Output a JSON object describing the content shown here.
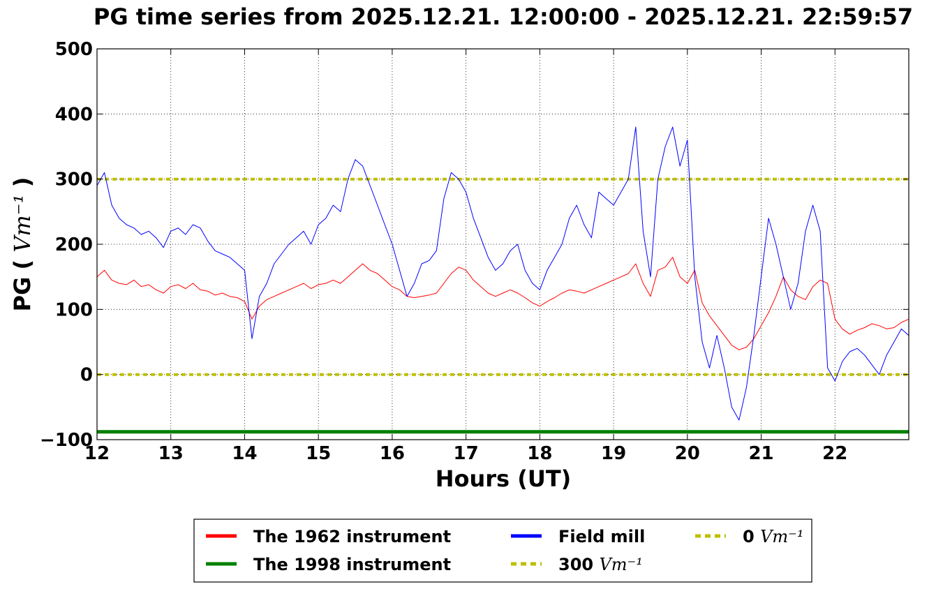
{
  "chart_data": {
    "type": "line",
    "title": "PG time series from 2025.12.21. 12:00:00 - 2025.12.21. 22:59:57",
    "xlabel": "Hours (UT)",
    "ylabel": "PG",
    "ylabel_unit": "Vm⁻¹",
    "xlim": [
      12,
      23
    ],
    "ylim": [
      -100,
      500
    ],
    "xticks": [
      "12",
      "13",
      "14",
      "15",
      "16",
      "17",
      "18",
      "19",
      "20",
      "21",
      "22"
    ],
    "yticks": [
      "−100",
      "0",
      "100",
      "200",
      "300",
      "400",
      "500"
    ],
    "grid": true,
    "legend_position": "below",
    "series": [
      {
        "name": "The 1962 instrument",
        "color": "#ff0000",
        "style": "solid",
        "x": [
          12.0,
          12.1,
          12.2,
          12.3,
          12.4,
          12.5,
          12.6,
          12.7,
          12.8,
          12.9,
          13.0,
          13.1,
          13.2,
          13.3,
          13.4,
          13.5,
          13.6,
          13.7,
          13.8,
          13.9,
          14.0,
          14.1,
          14.2,
          14.3,
          14.4,
          14.5,
          14.6,
          14.7,
          14.8,
          14.9,
          15.0,
          15.1,
          15.2,
          15.3,
          15.4,
          15.5,
          15.6,
          15.7,
          15.8,
          15.9,
          16.0,
          16.1,
          16.2,
          16.3,
          16.4,
          16.5,
          16.6,
          16.7,
          16.8,
          16.9,
          17.0,
          17.1,
          17.2,
          17.3,
          17.4,
          17.5,
          17.6,
          17.7,
          17.8,
          17.9,
          18.0,
          18.1,
          18.2,
          18.3,
          18.4,
          18.5,
          18.6,
          18.7,
          18.8,
          18.9,
          19.0,
          19.1,
          19.2,
          19.3,
          19.4,
          19.5,
          19.6,
          19.7,
          19.8,
          19.9,
          20.0,
          20.1,
          20.2,
          20.3,
          20.4,
          20.5,
          20.6,
          20.7,
          20.8,
          20.9,
          21.0,
          21.1,
          21.2,
          21.3,
          21.4,
          21.5,
          21.6,
          21.7,
          21.8,
          21.9,
          22.0,
          22.1,
          22.2,
          22.3,
          22.4,
          22.5,
          22.6,
          22.7,
          22.8,
          22.9,
          23.0
        ],
        "y": [
          150,
          160,
          145,
          140,
          138,
          145,
          135,
          138,
          130,
          125,
          135,
          138,
          132,
          140,
          130,
          128,
          122,
          125,
          120,
          118,
          112,
          85,
          105,
          115,
          120,
          125,
          130,
          135,
          140,
          132,
          138,
          140,
          145,
          140,
          150,
          160,
          170,
          160,
          155,
          145,
          135,
          130,
          120,
          118,
          120,
          122,
          125,
          140,
          155,
          165,
          160,
          145,
          135,
          125,
          120,
          125,
          130,
          125,
          118,
          110,
          105,
          112,
          118,
          125,
          130,
          128,
          125,
          130,
          135,
          140,
          145,
          150,
          155,
          170,
          140,
          120,
          160,
          165,
          180,
          150,
          140,
          160,
          110,
          90,
          75,
          60,
          45,
          38,
          42,
          55,
          75,
          95,
          120,
          150,
          130,
          120,
          115,
          135,
          145,
          140,
          85,
          70,
          62,
          68,
          72,
          78,
          75,
          70,
          72,
          80,
          85
        ],
        "linewidth": 1
      },
      {
        "name": "Field mill",
        "color": "#0000ff",
        "style": "solid",
        "x": [
          12.0,
          12.1,
          12.2,
          12.3,
          12.4,
          12.5,
          12.6,
          12.7,
          12.8,
          12.9,
          13.0,
          13.1,
          13.2,
          13.3,
          13.4,
          13.5,
          13.6,
          13.7,
          13.8,
          13.9,
          14.0,
          14.1,
          14.2,
          14.3,
          14.4,
          14.5,
          14.6,
          14.7,
          14.8,
          14.9,
          15.0,
          15.1,
          15.2,
          15.3,
          15.4,
          15.5,
          15.6,
          15.7,
          15.8,
          15.9,
          16.0,
          16.1,
          16.2,
          16.3,
          16.4,
          16.5,
          16.6,
          16.7,
          16.8,
          16.9,
          17.0,
          17.1,
          17.2,
          17.3,
          17.4,
          17.5,
          17.6,
          17.7,
          17.8,
          17.9,
          18.0,
          18.1,
          18.2,
          18.3,
          18.4,
          18.5,
          18.6,
          18.7,
          18.8,
          18.9,
          19.0,
          19.1,
          19.2,
          19.3,
          19.4,
          19.5,
          19.6,
          19.7,
          19.8,
          19.9,
          20.0,
          20.1,
          20.2,
          20.3,
          20.4,
          20.5,
          20.6,
          20.7,
          20.8,
          20.9,
          21.0,
          21.1,
          21.2,
          21.3,
          21.4,
          21.5,
          21.6,
          21.7,
          21.8,
          21.9,
          22.0,
          22.1,
          22.2,
          22.3,
          22.4,
          22.5,
          22.6,
          22.7,
          22.8,
          22.9,
          23.0
        ],
        "y": [
          290,
          310,
          260,
          240,
          230,
          225,
          215,
          220,
          210,
          195,
          220,
          225,
          215,
          230,
          225,
          205,
          190,
          185,
          180,
          170,
          160,
          55,
          120,
          140,
          170,
          185,
          200,
          210,
          220,
          200,
          230,
          240,
          260,
          250,
          300,
          330,
          320,
          290,
          260,
          230,
          200,
          160,
          120,
          140,
          170,
          175,
          190,
          270,
          310,
          300,
          280,
          240,
          210,
          180,
          160,
          170,
          190,
          200,
          160,
          140,
          130,
          160,
          180,
          200,
          240,
          260,
          230,
          210,
          280,
          270,
          260,
          280,
          300,
          380,
          220,
          150,
          300,
          350,
          380,
          320,
          360,
          150,
          50,
          10,
          60,
          10,
          -50,
          -70,
          -20,
          60,
          150,
          240,
          200,
          150,
          100,
          140,
          220,
          260,
          220,
          10,
          -10,
          20,
          35,
          40,
          30,
          15,
          0,
          30,
          50,
          70,
          60
        ],
        "linewidth": 1
      },
      {
        "name": "The 1998 instrument",
        "color": "#008000",
        "style": "solid",
        "x": [
          12,
          23
        ],
        "y": [
          -88,
          -88
        ],
        "linewidth": 5
      },
      {
        "name": "300",
        "legend_unit": "Vm⁻¹",
        "color": "#bfbf00",
        "style": "dotted",
        "x": [
          12,
          23
        ],
        "y": [
          300,
          300
        ],
        "linewidth": 4
      },
      {
        "name": "0",
        "legend_unit": "Vm⁻¹",
        "color": "#bfbf00",
        "style": "dotted",
        "x": [
          12,
          23
        ],
        "y": [
          0,
          0
        ],
        "linewidth": 4
      }
    ],
    "legend": [
      {
        "label": "The 1962 instrument",
        "unit": "",
        "color": "#ff0000",
        "style": "solid"
      },
      {
        "label": "Field mill",
        "unit": "",
        "color": "#0000ff",
        "style": "solid"
      },
      {
        "label": "0",
        "unit": "Vm⁻¹",
        "color": "#bfbf00",
        "style": "dotted"
      },
      {
        "label": "The 1998 instrument",
        "unit": "",
        "color": "#008000",
        "style": "solid"
      },
      {
        "label": "300",
        "unit": "Vm⁻¹",
        "color": "#bfbf00",
        "style": "dotted"
      }
    ]
  }
}
